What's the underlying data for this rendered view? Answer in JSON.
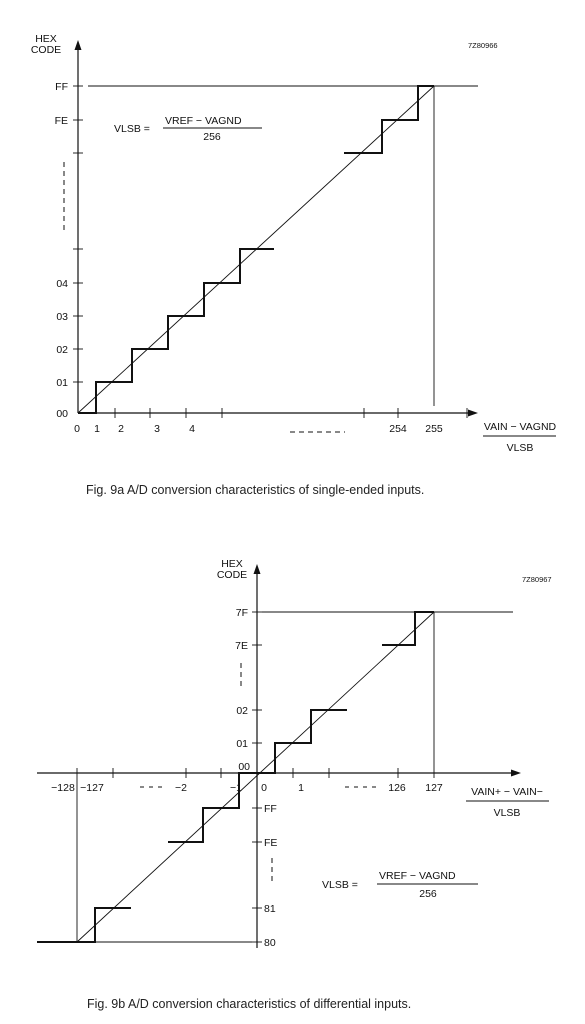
{
  "fig_a": {
    "ref": "7Z80966",
    "y_title_1": "HEX",
    "y_title_2": "CODE",
    "y_ticks": [
      "FF",
      "FE",
      "04",
      "03",
      "02",
      "01",
      "00"
    ],
    "x_ticks": [
      "0",
      "1",
      "2",
      "3",
      "4",
      "254",
      "255"
    ],
    "x_label_num": "VAIN − VAGND",
    "x_label_den": "VLSB",
    "formula_lhs": "VLSB =",
    "formula_num": "VREF − VAGND",
    "formula_den": "256",
    "caption": "Fig. 9a  A/D conversion characteristics of single-ended inputs."
  },
  "fig_b": {
    "ref": "7Z80967",
    "y_title_1": "HEX",
    "y_title_2": "CODE",
    "y_ticks_upper": [
      "7F",
      "7E",
      "02",
      "01",
      "00"
    ],
    "y_ticks_lower": [
      "FF",
      "FE",
      "81",
      "80"
    ],
    "x_ticks": [
      "−128",
      "−127",
      "−2",
      "−1",
      "0",
      "1",
      "126",
      "127"
    ],
    "x_label_num": "VAIN+ − VAIN−",
    "x_label_den": "VLSB",
    "formula_lhs": "VLSB =",
    "formula_num": "VREF − VAGND",
    "formula_den": "256",
    "caption": "Fig. 9b  A/D conversion characteristics of differential inputs."
  }
}
